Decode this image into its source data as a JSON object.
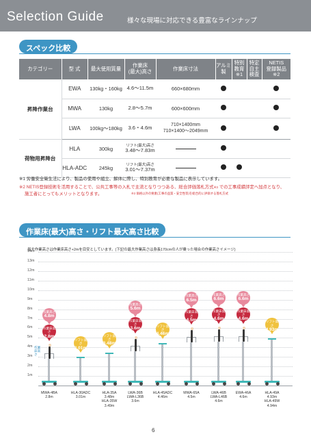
{
  "header": {
    "title": "Selection Guide",
    "subtitle": "様々な現場に対応できる豊富なラインナップ"
  },
  "spec_section": {
    "title": "スペック比較",
    "columns": [
      "カテゴリー",
      "型 式",
      "最大使用質量",
      "作業床\n(最大)高さ",
      "作業床寸法",
      "アルミ\n製",
      "特別\n教育\n※1",
      "特定\n自主\n検査",
      "NETIS\n登録製品\n※2"
    ],
    "rows": [
      {
        "category": "昇降作業台",
        "model": "EWA",
        "load": "130kg・160kg",
        "height": "4.6～11.5m",
        "floor": "660×680mm",
        "aluminum": true,
        "education": false,
        "inspection": false,
        "netis": true
      },
      {
        "category": "",
        "model": "MWA",
        "load": "130kg",
        "height": "2.8～5.7m",
        "floor": "600×600mm",
        "aluminum": true,
        "education": false,
        "inspection": false,
        "netis": true
      },
      {
        "category": "",
        "model": "LWA",
        "load": "100kg～180kg",
        "height": "3.6・4.6m",
        "floor": "710×1400mm\n710×1400～2049mm",
        "aluminum": true,
        "education": false,
        "inspection": false,
        "netis": true
      },
      {
        "category": "荷物用昇降台",
        "model": "HLA",
        "load": "300kg",
        "height_note": "リフト(最大)高さ",
        "height": "3.48～7.83m",
        "floor": "",
        "aluminum": true,
        "education": false,
        "inspection": false,
        "netis": false
      },
      {
        "category": "",
        "model": "HLA-ADC",
        "load": "245kg",
        "height_note": "リフト(最大)高さ",
        "height": "3.01～7.37m",
        "floor": "",
        "aluminum": true,
        "education": true,
        "inspection": false,
        "netis": false
      }
    ],
    "note1": "※1 労働安全衛生法により、製品の使用や組立、解体に際し、特別教育が必要な製品に表示しています。",
    "note2a": "※2 NETIS登録技術を活用することで、公共工事等の入札で主流となりつつある、総合評価落札方式",
    "note2a_sup": "※3",
    "note2a_end": " での工事成績評定へ加点となり、",
    "note2b": "施工者にとってもメリットとなります。",
    "note3": "※3 価格以外の要素(工事の品質・安全性等)を総合的に評価する落札方式"
  },
  "height_section": {
    "title": "作業床(最大)高さ・リフト最大高さ比較",
    "caption": "最大作業高さは作業床高さ+2mを目安としています。(下記の最大作業高さは身長170cmの人が乗った場合の作業高さイメージ)",
    "y_labels": [
      "14m",
      "13m",
      "12m",
      "11m",
      "10m",
      "9m",
      "8m",
      "7m",
      "6m",
      "5m",
      "4m",
      "3m",
      "2m",
      "1m"
    ],
    "side_tag": "作業床高さ",
    "models": [
      {
        "name": "MWA-4BA",
        "height": "2.8m",
        "pin_label": "作業床高さ",
        "pin_value": "2.8m",
        "pin_color": "#c62a3f",
        "work_label": "作業高さ",
        "work_value": "4.8m"
      },
      {
        "name": "HLA-30ADC",
        "height": "3.01m",
        "pin_label": "リフト高さ",
        "pin_value": "3.01m",
        "pin_color": "#f0c23e"
      },
      {
        "name": "HLA-35A",
        "height": "3.48m",
        "name2": "HLA-35W",
        "height2": "3.49m",
        "pin_label": "リフト高さ",
        "pin_value": "3.48m",
        "pin_color": "#f0c23e"
      },
      {
        "name": "LWA-36B",
        "name2": "LWA-L36B",
        "height": "3.6m",
        "pin_label": "作業床高さ",
        "pin_value": "3.6m",
        "pin_color": "#c62a3f",
        "work_label": "作業高さ",
        "work_value": "5.6m"
      },
      {
        "name": "HLA-45ADC",
        "height": "4.46m",
        "pin_label": "リフト高さ",
        "pin_value": "4.46m",
        "pin_color": "#f0c23e"
      },
      {
        "name": "MWA-65A",
        "height": "4.5m",
        "pin_label": "作業床高さ",
        "pin_value": "4.5m",
        "pin_color": "#c62a3f",
        "work_label": "作業高さ",
        "work_value": "6.5m"
      },
      {
        "name": "LWA-46B",
        "name2": "LWA-L46B",
        "height": "4.6m",
        "pin_label": "作業床高さ",
        "pin_value": "4.6m",
        "pin_color": "#c62a3f",
        "work_label": "作業高さ",
        "work_value": "6.6m"
      },
      {
        "name": "EWA-46A",
        "height": "4.6m",
        "pin_label": "作業床高さ",
        "pin_value": "4.6m",
        "pin_color": "#c62a3f",
        "work_label": "作業高さ",
        "work_value": "6.6m"
      },
      {
        "name": "HLA-49A",
        "height": "4.93m",
        "name2": "HLA-49W",
        "height2": "4.94m",
        "pin_label": "リフト高さ",
        "pin_value": "4.93m",
        "pin_color": "#f0c23e"
      }
    ]
  },
  "page_number": "6"
}
